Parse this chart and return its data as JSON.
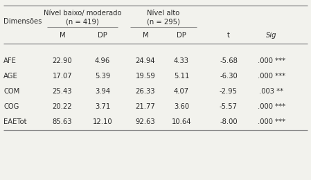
{
  "title_col1_line1": "Nível baixo/ moderado",
  "title_col1_line2": "(n = 419)",
  "title_col2_line1": "Nível alto",
  "title_col2_line2": "(n = 295)",
  "col_dim": "Dimensões",
  "headers": [
    "M",
    "DP",
    "M",
    "DP",
    "t",
    "Sig"
  ],
  "rows": [
    [
      "AFE",
      "22.90",
      "4.96",
      "24.94",
      "4.33",
      "-5.68",
      ".000 ***"
    ],
    [
      "AGE",
      "17.07",
      "5.39",
      "19.59",
      "5.11",
      "-6.30",
      ".000 ***"
    ],
    [
      "COM",
      "25.43",
      "3.94",
      "26.33",
      "4.07",
      "-2.95",
      ".003 **"
    ],
    [
      "COG",
      "20.22",
      "3.71",
      "21.77",
      "3.60",
      "-5.57",
      ".000 ***"
    ],
    [
      "EAETot",
      "85.63",
      "12.10",
      "92.63",
      "10.64",
      "-8.00",
      ".000 ***"
    ]
  ],
  "bg_color": "#f2f2ed",
  "text_color": "#2a2a2a",
  "line_color": "#888888",
  "font_size": 7.2,
  "font_family": "sans-serif"
}
